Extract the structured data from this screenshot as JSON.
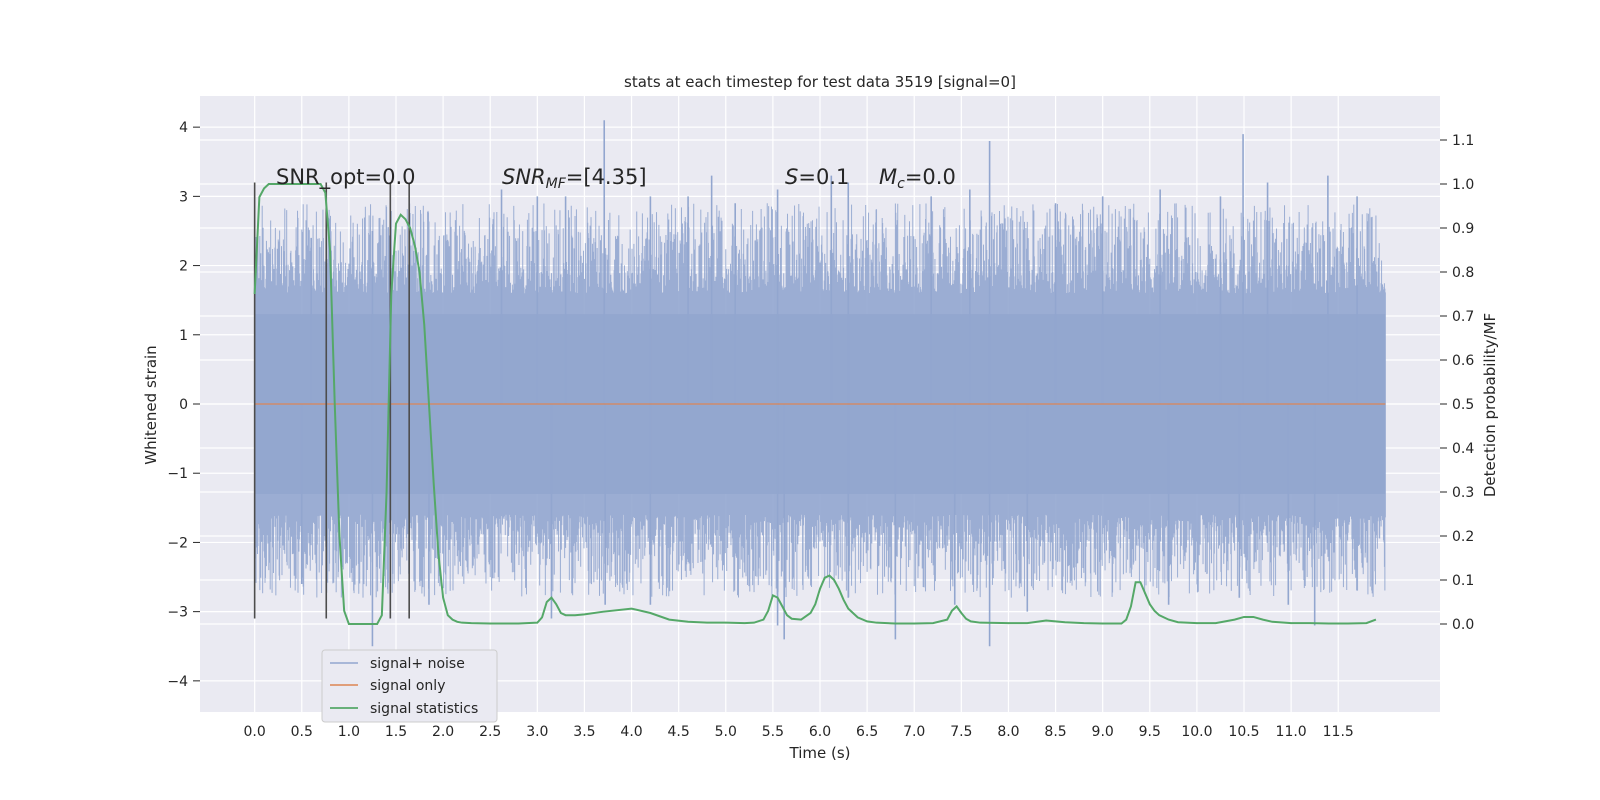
{
  "chart_data": {
    "type": "line",
    "title": "stats at each timestep for test data 3519 [signal=0]",
    "xlabel": "Time (s)",
    "ylabel_left": "Whitened strain",
    "ylabel_right": "Detection probability/MF",
    "xlim": [
      -0.58,
      12.58
    ],
    "ylim_left": [
      -4.45,
      4.45
    ],
    "ylim_right": [
      -0.2,
      1.2
    ],
    "x_ticks": [
      0.0,
      0.5,
      1.0,
      1.5,
      2.0,
      2.5,
      3.0,
      3.5,
      4.0,
      4.5,
      5.0,
      5.5,
      6.0,
      6.5,
      7.0,
      7.5,
      8.0,
      8.5,
      9.0,
      9.5,
      10.0,
      10.5,
      11.0,
      11.5
    ],
    "x_tick_labels": [
      "0.0",
      "0.5",
      "1.0",
      "1.5",
      "2.0",
      "2.5",
      "3.0",
      "3.5",
      "4.0",
      "4.5",
      "5.0",
      "5.5",
      "6.0",
      "6.5",
      "7.0",
      "7.5",
      "8.0",
      "8.5",
      "9.0",
      "9.5",
      "10.0",
      "10.5",
      "11.0",
      "11.5"
    ],
    "y_left_ticks": [
      -4,
      -3,
      -2,
      -1,
      0,
      1,
      2,
      3,
      4
    ],
    "y_left_tick_labels": [
      "−4",
      "−3",
      "−2",
      "−1",
      "0",
      "1",
      "2",
      "3",
      "4"
    ],
    "y_right_ticks": [
      0.0,
      0.1,
      0.2,
      0.3,
      0.4,
      0.5,
      0.6,
      0.7,
      0.8,
      0.9,
      1.0,
      1.1
    ],
    "y_right_tick_labels": [
      "0.0",
      "0.1",
      "0.2",
      "0.3",
      "0.4",
      "0.5",
      "0.6",
      "0.7",
      "0.8",
      "0.9",
      "1.0",
      "1.1"
    ],
    "grid": true,
    "legend_placement": "lower-left",
    "noise_time_range": [
      0.0,
      12.0
    ],
    "noise_band_left": [
      -1.3,
      1.3
    ],
    "signal_only_level": 0.0,
    "series": [
      {
        "name": "signal+ noise",
        "color": "#92a6cf",
        "axis": "left",
        "peaks_up": [
          [
            0.6,
            2.4
          ],
          [
            1.25,
            2.5
          ],
          [
            2.62,
            3.1
          ],
          [
            3.0,
            3.0
          ],
          [
            3.3,
            3.0
          ],
          [
            3.71,
            4.1
          ],
          [
            4.2,
            3.0
          ],
          [
            4.6,
            3.0
          ],
          [
            4.85,
            3.3
          ],
          [
            5.1,
            2.9
          ],
          [
            5.55,
            3.1
          ],
          [
            6.12,
            3.3
          ],
          [
            6.3,
            3.2
          ],
          [
            7.18,
            3.0
          ],
          [
            7.59,
            3.1
          ],
          [
            7.8,
            3.8
          ],
          [
            8.5,
            2.9
          ],
          [
            9.0,
            3.0
          ],
          [
            9.61,
            3.1
          ],
          [
            10.25,
            3.0
          ],
          [
            10.49,
            3.9
          ],
          [
            10.75,
            3.2
          ],
          [
            11.39,
            3.3
          ],
          [
            11.7,
            3.0
          ]
        ],
        "peaks_down": [
          [
            0.5,
            -2.6
          ],
          [
            1.25,
            -3.5
          ],
          [
            1.85,
            -2.9
          ],
          [
            3.15,
            -3.1
          ],
          [
            3.72,
            -2.9
          ],
          [
            4.2,
            -2.9
          ],
          [
            5.55,
            -3.2
          ],
          [
            5.62,
            -3.4
          ],
          [
            6.3,
            -2.8
          ],
          [
            6.8,
            -3.4
          ],
          [
            7.43,
            -2.9
          ],
          [
            7.8,
            -3.5
          ],
          [
            8.2,
            -3.0
          ],
          [
            9.7,
            -2.9
          ],
          [
            10.45,
            -2.8
          ],
          [
            10.97,
            -2.9
          ],
          [
            11.25,
            -3.2
          ]
        ]
      },
      {
        "name": "signal only",
        "color": "#dd8452",
        "axis": "left"
      },
      {
        "name": "signal statistics",
        "color": "#55a868",
        "axis": "right",
        "x": [
          0.0,
          0.05,
          0.1,
          0.15,
          0.2,
          0.3,
          0.4,
          0.5,
          0.6,
          0.65,
          0.7,
          0.75,
          0.8,
          0.85,
          0.9,
          0.95,
          1.0,
          1.05,
          1.1,
          1.2,
          1.3,
          1.35,
          1.4,
          1.45,
          1.5,
          1.55,
          1.6,
          1.65,
          1.7,
          1.75,
          1.8,
          1.85,
          1.9,
          1.95,
          2.0,
          2.05,
          2.1,
          2.15,
          2.2,
          2.3,
          2.5,
          2.8,
          3.0,
          3.05,
          3.1,
          3.15,
          3.2,
          3.25,
          3.3,
          3.4,
          3.5,
          3.7,
          4.0,
          4.2,
          4.4,
          4.6,
          4.8,
          5.0,
          5.2,
          5.3,
          5.4,
          5.45,
          5.5,
          5.55,
          5.6,
          5.65,
          5.7,
          5.8,
          5.9,
          5.95,
          6.0,
          6.05,
          6.1,
          6.15,
          6.2,
          6.25,
          6.3,
          6.4,
          6.5,
          6.6,
          6.8,
          7.0,
          7.2,
          7.35,
          7.4,
          7.45,
          7.5,
          7.55,
          7.6,
          7.7,
          8.0,
          8.2,
          8.4,
          8.6,
          8.8,
          9.0,
          9.2,
          9.25,
          9.3,
          9.35,
          9.4,
          9.45,
          9.5,
          9.55,
          9.6,
          9.7,
          9.8,
          10.0,
          10.2,
          10.4,
          10.5,
          10.6,
          10.7,
          10.8,
          11.0,
          11.2,
          11.4,
          11.6,
          11.8,
          11.9
        ],
        "values": [
          0.75,
          0.97,
          0.99,
          1.0,
          1.0,
          1.0,
          1.0,
          1.0,
          1.0,
          1.0,
          1.0,
          0.98,
          0.85,
          0.5,
          0.2,
          0.03,
          0.0,
          0.0,
          0.0,
          0.0,
          0.0,
          0.02,
          0.3,
          0.75,
          0.91,
          0.93,
          0.92,
          0.9,
          0.86,
          0.8,
          0.68,
          0.5,
          0.32,
          0.16,
          0.06,
          0.02,
          0.01,
          0.005,
          0.003,
          0.002,
          0.001,
          0.001,
          0.003,
          0.015,
          0.05,
          0.06,
          0.045,
          0.025,
          0.02,
          0.02,
          0.022,
          0.028,
          0.035,
          0.025,
          0.01,
          0.005,
          0.003,
          0.003,
          0.002,
          0.003,
          0.01,
          0.03,
          0.065,
          0.06,
          0.04,
          0.02,
          0.012,
          0.01,
          0.025,
          0.045,
          0.08,
          0.105,
          0.11,
          0.1,
          0.08,
          0.055,
          0.035,
          0.015,
          0.006,
          0.003,
          0.001,
          0.001,
          0.002,
          0.01,
          0.03,
          0.04,
          0.025,
          0.012,
          0.006,
          0.003,
          0.002,
          0.002,
          0.008,
          0.004,
          0.002,
          0.001,
          0.001,
          0.01,
          0.04,
          0.095,
          0.095,
          0.07,
          0.045,
          0.03,
          0.02,
          0.01,
          0.004,
          0.002,
          0.002,
          0.01,
          0.016,
          0.016,
          0.01,
          0.005,
          0.002,
          0.002,
          0.001,
          0.001,
          0.002,
          0.01
        ]
      }
    ],
    "vertical_markers": {
      "color": "#4d4d4d",
      "x": [
        0.0,
        0.76,
        1.44,
        1.64
      ],
      "y_range_left": [
        -3.1,
        3.2
      ]
    },
    "annotations": {
      "snr_opt": "SNR_opt=0.0",
      "snr_mf_name": "SNR",
      "snr_mf_sub": "MF",
      "snr_mf_value": "=[4.35]",
      "s_name": "S",
      "s_value": "=0.1",
      "mc_name": "M",
      "mc_sub": "c",
      "mc_value": "=0.0"
    }
  }
}
